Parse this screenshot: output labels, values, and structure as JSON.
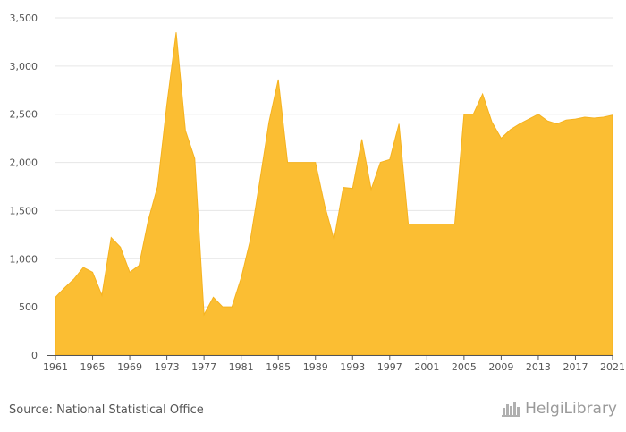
{
  "chart_data": {
    "type": "area",
    "x": [
      1961,
      1962,
      1963,
      1964,
      1965,
      1966,
      1967,
      1968,
      1969,
      1970,
      1971,
      1972,
      1973,
      1974,
      1975,
      1976,
      1977,
      1978,
      1979,
      1980,
      1981,
      1982,
      1983,
      1984,
      1985,
      1986,
      1987,
      1988,
      1989,
      1990,
      1991,
      1992,
      1993,
      1994,
      1995,
      1996,
      1997,
      1998,
      1999,
      2000,
      2001,
      2002,
      2003,
      2004,
      2005,
      2006,
      2007,
      2008,
      2009,
      2010,
      2011,
      2012,
      2013,
      2014,
      2015,
      2016,
      2017,
      2018,
      2019,
      2020,
      2021
    ],
    "series": [
      {
        "values": [
          600,
          700,
          790,
          910,
          860,
          620,
          1220,
          1120,
          860,
          930,
          1400,
          1750,
          2600,
          3350,
          2330,
          2040,
          420,
          600,
          500,
          500,
          800,
          1200,
          1800,
          2420,
          2860,
          2000,
          2000,
          2000,
          2000,
          1550,
          1200,
          1740,
          1730,
          2240,
          1720,
          2000,
          2030,
          2400,
          1360,
          1360,
          1360,
          1360,
          1360,
          1360,
          2500,
          2500,
          2710,
          2420,
          2250,
          2340,
          2400,
          2450,
          2500,
          2430,
          2400,
          2440,
          2450,
          2470,
          2460,
          2470,
          2490
        ],
        "color": "#fbbe33"
      }
    ],
    "xticks": [
      "1961",
      "1965",
      "1969",
      "1973",
      "1977",
      "1981",
      "1985",
      "1989",
      "1993",
      "1997",
      "2001",
      "2005",
      "2009",
      "2013",
      "2017",
      "2021"
    ],
    "yticks": [
      0,
      500,
      1000,
      1500,
      2000,
      2500,
      3000,
      3500
    ],
    "ytick_labels": [
      "0",
      "500",
      "1,000",
      "1,500",
      "2,000",
      "2,500",
      "3,000",
      "3,500"
    ],
    "ylim": [
      0,
      3500
    ],
    "xlim": [
      1961,
      2021
    ],
    "grid": true,
    "fill_color": "#fbbe33",
    "line_color": "#f5b21f"
  },
  "footer": {
    "source": "Source: National Statistical Office",
    "logo_name": "Helgi",
    "logo_suffix": "Library",
    "logo_icon": "helgi-library-logo-icon"
  }
}
